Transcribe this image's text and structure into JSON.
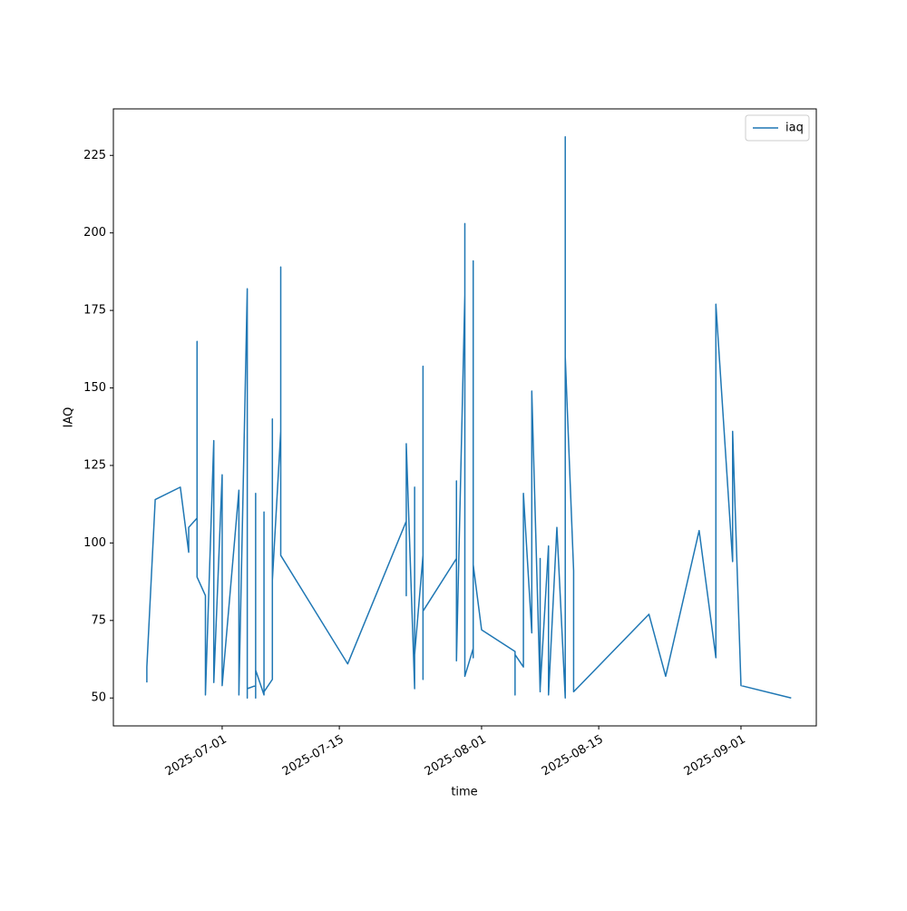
{
  "chart_data": {
    "type": "line",
    "x_label": "time",
    "y_label": "IAQ",
    "x": [
      "2025-06-22",
      "2025-06-22",
      "2025-06-23",
      "2025-06-26",
      "2025-06-27",
      "2025-06-27",
      "2025-06-28",
      "2025-06-28",
      "2025-06-28",
      "2025-06-28",
      "2025-06-28",
      "2025-06-29",
      "2025-06-29",
      "2025-06-30",
      "2025-06-30",
      "2025-07-01",
      "2025-07-01",
      "2025-07-03",
      "2025-07-03",
      "2025-07-03",
      "2025-07-04",
      "2025-07-04",
      "2025-07-04",
      "2025-07-04",
      "2025-07-05",
      "2025-07-05",
      "2025-07-05",
      "2025-07-05",
      "2025-07-06",
      "2025-07-06",
      "2025-07-06",
      "2025-07-07",
      "2025-07-07",
      "2025-07-07",
      "2025-07-07",
      "2025-07-07",
      "2025-07-08",
      "2025-07-08",
      "2025-07-08",
      "2025-07-08",
      "2025-07-16",
      "2025-07-23",
      "2025-07-23",
      "2025-07-23",
      "2025-07-23",
      "2025-07-24",
      "2025-07-24",
      "2025-07-24",
      "2025-07-24",
      "2025-07-25",
      "2025-07-25",
      "2025-07-25",
      "2025-07-25",
      "2025-07-29",
      "2025-07-29",
      "2025-07-29",
      "2025-07-30",
      "2025-07-30",
      "2025-07-30",
      "2025-07-30",
      "2025-07-30",
      "2025-07-31",
      "2025-07-31",
      "2025-07-31",
      "2025-07-31",
      "2025-07-31",
      "2025-08-01",
      "2025-08-05",
      "2025-08-05",
      "2025-08-05",
      "2025-08-06",
      "2025-08-06",
      "2025-08-06",
      "2025-08-07",
      "2025-08-07",
      "2025-08-08",
      "2025-08-08",
      "2025-08-08",
      "2025-08-08",
      "2025-08-08",
      "2025-08-09",
      "2025-08-09",
      "2025-08-09",
      "2025-08-10",
      "2025-08-11",
      "2025-08-11",
      "2025-08-11",
      "2025-08-11",
      "2025-08-11",
      "2025-08-12",
      "2025-08-12",
      "2025-08-12",
      "2025-08-21",
      "2025-08-23",
      "2025-08-27",
      "2025-08-29",
      "2025-08-29",
      "2025-08-31",
      "2025-08-31",
      "2025-09-01",
      "2025-09-07"
    ],
    "series": [
      {
        "name": "iaq",
        "color": "#1f77b4",
        "values": [
          55,
          60,
          114,
          118,
          97,
          105,
          108,
          165,
          109,
          129,
          89,
          83,
          51,
          133,
          55,
          122,
          54,
          117,
          52,
          51,
          182,
          50,
          84,
          53,
          54,
          116,
          50,
          59,
          51,
          110,
          52,
          56,
          122,
          72,
          140,
          88,
          136,
          118,
          189,
          96,
          61,
          107,
          92,
          83,
          132,
          53,
          118,
          117,
          64,
          96,
          56,
          157,
          78,
          95,
          120,
          62,
          180,
          203,
          65,
          89,
          57,
          66,
          63,
          191,
          63,
          93,
          72,
          65,
          51,
          64,
          60,
          109,
          116,
          71,
          149,
          52,
          75,
          70,
          95,
          53,
          99,
          53,
          51,
          105,
          50,
          82,
          65,
          231,
          160,
          91,
          88,
          52,
          77,
          57,
          104,
          63,
          177,
          94,
          136,
          54,
          50
        ]
      }
    ],
    "xlim": [
      "2025-06-18",
      "2025-09-10"
    ],
    "xticks": [
      "2025-07-01",
      "2025-07-15",
      "2025-08-01",
      "2025-08-15",
      "2025-09-01"
    ],
    "ylim": [
      41,
      240
    ],
    "yticks": [
      50,
      75,
      100,
      125,
      150,
      175,
      200,
      225
    ],
    "legend": "upper right"
  }
}
